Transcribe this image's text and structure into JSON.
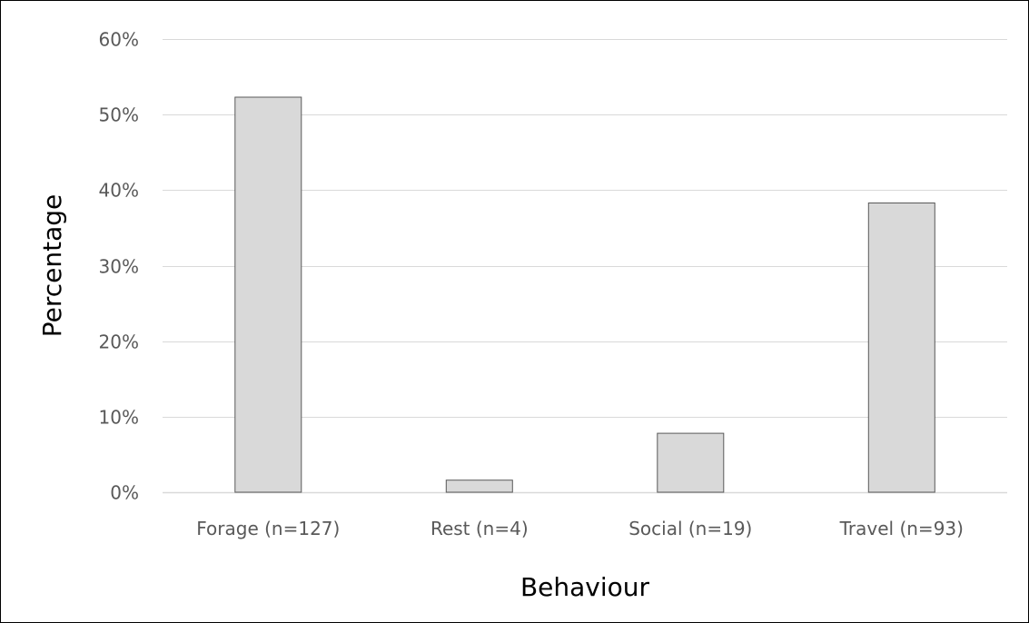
{
  "chart_data": {
    "type": "bar",
    "title": "",
    "xlabel": "Behaviour",
    "ylabel": "Percentage",
    "categories": [
      "Forage (n=127)",
      "Rest (n=4)",
      "Social (n=19)",
      "Travel (n=93)"
    ],
    "values": [
      52.3,
      1.6,
      7.8,
      38.3
    ],
    "ylim": [
      0,
      60
    ],
    "yticks": [
      0,
      10,
      20,
      30,
      40,
      50,
      60
    ],
    "ytick_labels": [
      "0%",
      "10%",
      "20%",
      "30%",
      "40%",
      "50%",
      "60%"
    ],
    "grid": true,
    "legend": "none",
    "colors": {
      "bar_fill": "#d9d9d9",
      "bar_stroke": "#595959",
      "gridline": "#d9d9d9",
      "tick_text": "#595959"
    }
  }
}
